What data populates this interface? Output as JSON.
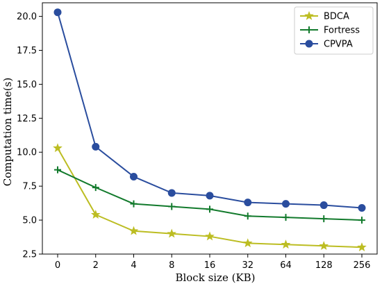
{
  "chart_data": {
    "type": "line",
    "title": "",
    "xlabel": "Block size (KB)",
    "ylabel": "Computation time(s)",
    "categories": [
      "0",
      "2",
      "4",
      "8",
      "16",
      "32",
      "64",
      "128",
      "256"
    ],
    "ylim": [
      2.5,
      21
    ],
    "yticks": [
      2.5,
      5.0,
      7.5,
      10.0,
      12.5,
      15.0,
      17.5,
      20.0
    ],
    "ytick_labels": [
      "2.5",
      "5.0",
      "7.5",
      "10.0",
      "12.5",
      "15.0",
      "17.5",
      "20.0"
    ],
    "grid": false,
    "legend_position": "top-right",
    "series": [
      {
        "name": "BDCA",
        "color": "#bcbd22",
        "marker": "star",
        "values": [
          10.3,
          5.4,
          4.2,
          4.0,
          3.8,
          3.3,
          3.2,
          3.1,
          3.0
        ]
      },
      {
        "name": "Fortress",
        "color": "#127a2c",
        "marker": "plus",
        "values": [
          8.7,
          7.4,
          6.2,
          6.0,
          5.8,
          5.3,
          5.2,
          5.1,
          5.0
        ]
      },
      {
        "name": "CPVPA",
        "color": "#2a4d9e",
        "marker": "circle",
        "values": [
          20.3,
          10.4,
          8.2,
          7.0,
          6.8,
          6.3,
          6.2,
          6.1,
          5.9
        ]
      }
    ]
  }
}
